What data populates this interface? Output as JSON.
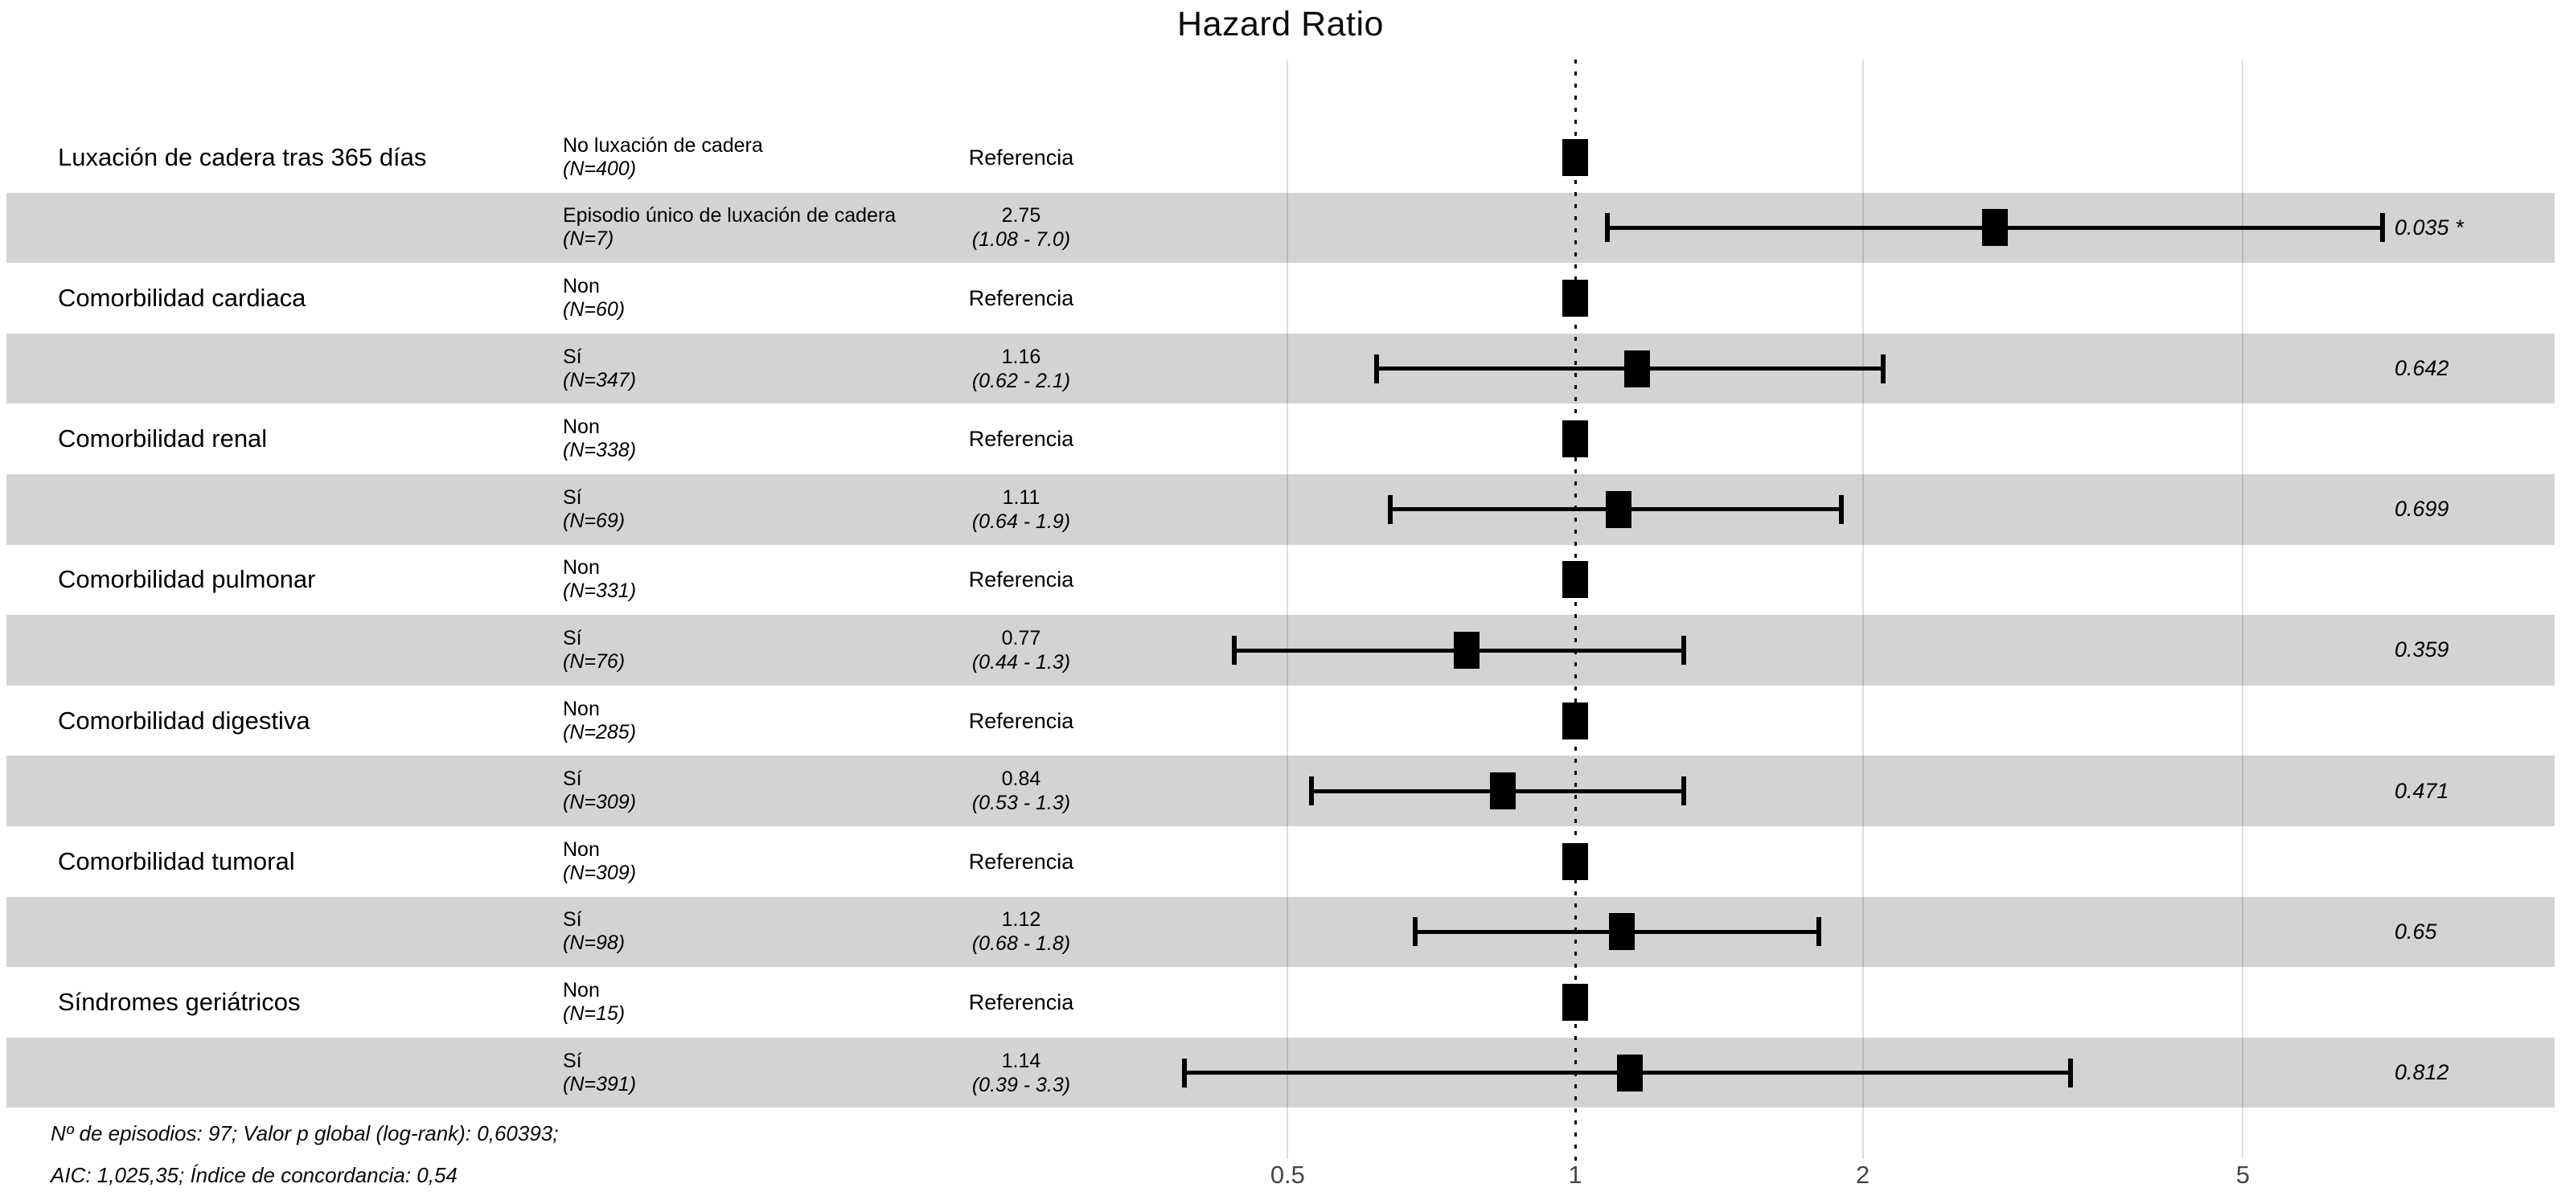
{
  "title": "Hazard Ratio",
  "axis": {
    "tick_labels": [
      "0.5",
      "1",
      "2",
      "5"
    ],
    "tick_values": [
      0.5,
      1,
      2,
      5
    ],
    "reference_value": 1
  },
  "footnotes": [
    "Nº de episodios: 97; Valor p global (log-rank): 0,60393;",
    "AIC: 1,025,35; Índice de concordancia: 0,54"
  ],
  "colors": {
    "band": "#d3d3d3",
    "marker": "#000000",
    "axis_text": "#454545",
    "text": "#000000"
  },
  "chart_data": {
    "type": "forest",
    "scale": "log10",
    "title": "Hazard Ratio",
    "xlim": [
      0.35,
      9
    ],
    "xticks": [
      0.5,
      1,
      2,
      5
    ],
    "rows": [
      {
        "variable": "Luxación de cadera tras 365 días",
        "group": "No luxación de cadera",
        "n_label": "(N=400)",
        "estimate_label": "Referencia",
        "hr": 1,
        "reference": true,
        "shaded": false
      },
      {
        "variable": "",
        "group": "Episodio único de luxación de cadera",
        "n_label": "(N=7)",
        "estimate_label": "2.75",
        "ci_label": "(1.08 - 7.0)",
        "hr": 2.75,
        "lo": 1.08,
        "hi": 7.0,
        "p": "0.035 *",
        "shaded": true
      },
      {
        "variable": "Comorbilidad cardiaca",
        "group": "Non",
        "n_label": "(N=60)",
        "estimate_label": "Referencia",
        "hr": 1,
        "reference": true,
        "shaded": false
      },
      {
        "variable": "",
        "group": "Sí",
        "n_label": "(N=347)",
        "estimate_label": "1.16",
        "ci_label": "(0.62 - 2.1)",
        "hr": 1.16,
        "lo": 0.62,
        "hi": 2.1,
        "p": "0.642",
        "shaded": true
      },
      {
        "variable": "Comorbilidad renal",
        "group": "Non",
        "n_label": "(N=338)",
        "estimate_label": "Referencia",
        "hr": 1,
        "reference": true,
        "shaded": false
      },
      {
        "variable": "",
        "group": "Sí",
        "n_label": "(N=69)",
        "estimate_label": "1.11",
        "ci_label": "(0.64 - 1.9)",
        "hr": 1.11,
        "lo": 0.64,
        "hi": 1.9,
        "p": "0.699",
        "shaded": true
      },
      {
        "variable": "Comorbilidad pulmonar",
        "group": "Non",
        "n_label": "(N=331)",
        "estimate_label": "Referencia",
        "hr": 1,
        "reference": true,
        "shaded": false
      },
      {
        "variable": "",
        "group": "Sí",
        "n_label": "(N=76)",
        "estimate_label": "0.77",
        "ci_label": "(0.44 - 1.3)",
        "hr": 0.77,
        "lo": 0.44,
        "hi": 1.3,
        "p": "0.359",
        "shaded": true
      },
      {
        "variable": "Comorbilidad digestiva",
        "group": "Non",
        "n_label": "(N=285)",
        "estimate_label": "Referencia",
        "hr": 1,
        "reference": true,
        "shaded": false
      },
      {
        "variable": "",
        "group": "Sí",
        "n_label": "(N=309)",
        "estimate_label": "0.84",
        "ci_label": "(0.53 - 1.3)",
        "hr": 0.84,
        "lo": 0.53,
        "hi": 1.3,
        "p": "0.471",
        "shaded": true
      },
      {
        "variable": "Comorbilidad tumoral",
        "group": "Non",
        "n_label": "(N=309)",
        "estimate_label": "Referencia",
        "hr": 1,
        "reference": true,
        "shaded": false
      },
      {
        "variable": "",
        "group": "Sí",
        "n_label": "(N=98)",
        "estimate_label": "1.12",
        "ci_label": "(0.68 - 1.8)",
        "hr": 1.12,
        "lo": 0.68,
        "hi": 1.8,
        "p": "0.65",
        "shaded": true
      },
      {
        "variable": "Síndromes geriátricos",
        "group": "Non",
        "n_label": "(N=15)",
        "estimate_label": "Referencia",
        "hr": 1,
        "reference": true,
        "shaded": false
      },
      {
        "variable": "",
        "group": "Sí",
        "n_label": "(N=391)",
        "estimate_label": "1.14",
        "ci_label": "(0.39 - 3.3)",
        "hr": 1.14,
        "lo": 0.39,
        "hi": 3.3,
        "p": "0.812",
        "shaded": true
      }
    ]
  }
}
